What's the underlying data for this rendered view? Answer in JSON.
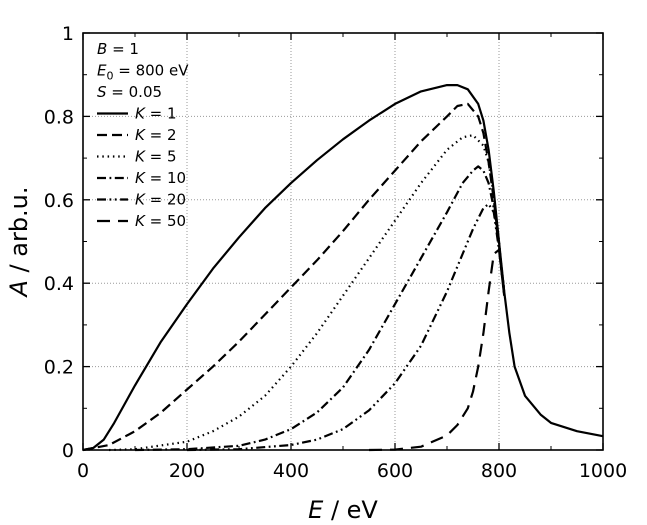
{
  "chart_data": {
    "type": "line",
    "xlabel": {
      "italic": "E",
      "rest": " / eV"
    },
    "ylabel": {
      "italic": "A",
      "rest": " / arb.u."
    },
    "xlim": [
      0,
      1000
    ],
    "ylim": [
      0,
      1
    ],
    "x_ticks": [
      {
        "value": 0,
        "label": "0"
      },
      {
        "value": 200,
        "label": "200"
      },
      {
        "value": 400,
        "label": "400"
      },
      {
        "value": 600,
        "label": "600"
      },
      {
        "value": 800,
        "label": "800"
      },
      {
        "value": 1000,
        "label": "1000"
      }
    ],
    "y_ticks": [
      {
        "value": 0,
        "label": "0"
      },
      {
        "value": 0.2,
        "label": "0.2"
      },
      {
        "value": 0.4,
        "label": "0.4"
      },
      {
        "value": 0.6,
        "label": "0.6"
      },
      {
        "value": 0.8,
        "label": "0.8"
      },
      {
        "value": 1,
        "label": "1"
      }
    ],
    "grid": true,
    "grid_style": "dotted",
    "legend_position": "top-left",
    "parameters": [
      {
        "symbol": "B",
        "sub": "",
        "rest": " = 1"
      },
      {
        "symbol": "E",
        "sub": "0",
        "rest": " = 800 eV"
      },
      {
        "symbol": "S",
        "sub": "",
        "rest": " = 0.05"
      }
    ],
    "series": [
      {
        "name": "K = 1",
        "legend_symbol": "K",
        "legend_rest": " = 1",
        "dash": "solid",
        "x": [
          0,
          20,
          40,
          60,
          80,
          100,
          150,
          200,
          250,
          300,
          350,
          400,
          450,
          500,
          550,
          600,
          650,
          700,
          720,
          740,
          760,
          770,
          780,
          790,
          800,
          810,
          820,
          830,
          850,
          880,
          900,
          950,
          1000
        ],
        "y": [
          0,
          0.005,
          0.025,
          0.065,
          0.11,
          0.155,
          0.26,
          0.35,
          0.435,
          0.51,
          0.58,
          0.64,
          0.695,
          0.745,
          0.79,
          0.83,
          0.86,
          0.875,
          0.875,
          0.865,
          0.83,
          0.79,
          0.72,
          0.62,
          0.5,
          0.38,
          0.28,
          0.2,
          0.13,
          0.085,
          0.065,
          0.045,
          0.033
        ]
      },
      {
        "name": "K = 2",
        "legend_symbol": "K",
        "legend_rest": " = 2",
        "dash": "dashed",
        "x": [
          0,
          50,
          100,
          150,
          200,
          250,
          300,
          350,
          400,
          450,
          500,
          550,
          600,
          650,
          700,
          720,
          740,
          760,
          770,
          780,
          790,
          800,
          810
        ],
        "y": [
          0,
          0.012,
          0.045,
          0.09,
          0.145,
          0.2,
          0.26,
          0.325,
          0.39,
          0.455,
          0.525,
          0.6,
          0.67,
          0.74,
          0.8,
          0.825,
          0.83,
          0.8,
          0.76,
          0.69,
          0.6,
          0.49,
          0.38
        ]
      },
      {
        "name": "K = 5",
        "legend_symbol": "K",
        "legend_rest": " = 5",
        "dash": "dotted",
        "x": [
          50,
          100,
          200,
          250,
          300,
          350,
          400,
          450,
          500,
          550,
          600,
          650,
          700,
          730,
          750,
          770,
          780,
          790,
          800,
          810
        ],
        "y": [
          0,
          0.002,
          0.02,
          0.045,
          0.08,
          0.13,
          0.2,
          0.28,
          0.37,
          0.46,
          0.55,
          0.64,
          0.72,
          0.75,
          0.755,
          0.73,
          0.69,
          0.61,
          0.5,
          0.38
        ]
      },
      {
        "name": "K = 10",
        "legend_symbol": "K",
        "legend_rest": " = 10",
        "dash": "dashdot",
        "x": [
          100,
          200,
          300,
          350,
          400,
          450,
          500,
          550,
          600,
          650,
          700,
          730,
          750,
          760,
          770,
          780,
          790,
          800,
          810
        ],
        "y": [
          0,
          0.002,
          0.01,
          0.025,
          0.05,
          0.09,
          0.15,
          0.24,
          0.35,
          0.46,
          0.57,
          0.64,
          0.67,
          0.68,
          0.67,
          0.64,
          0.58,
          0.49,
          0.38
        ]
      },
      {
        "name": "K = 20",
        "legend_symbol": "K",
        "legend_rest": " = 20",
        "dash": "dashdotdot",
        "x": [
          200,
          300,
          400,
          450,
          500,
          550,
          600,
          650,
          700,
          730,
          750,
          770,
          780,
          790,
          800,
          810
        ],
        "y": [
          0,
          0.002,
          0.012,
          0.025,
          0.05,
          0.095,
          0.16,
          0.25,
          0.38,
          0.47,
          0.53,
          0.58,
          0.59,
          0.57,
          0.48,
          0.37
        ]
      },
      {
        "name": "K = 50",
        "legend_symbol": "K",
        "legend_rest": " = 50",
        "dash": "longdash",
        "x": [
          550,
          600,
          650,
          700,
          720,
          740,
          750,
          760,
          770,
          780,
          790,
          800,
          810
        ],
        "y": [
          0,
          0.001,
          0.008,
          0.035,
          0.06,
          0.1,
          0.14,
          0.2,
          0.28,
          0.38,
          0.47,
          0.48,
          0.37
        ]
      }
    ]
  }
}
